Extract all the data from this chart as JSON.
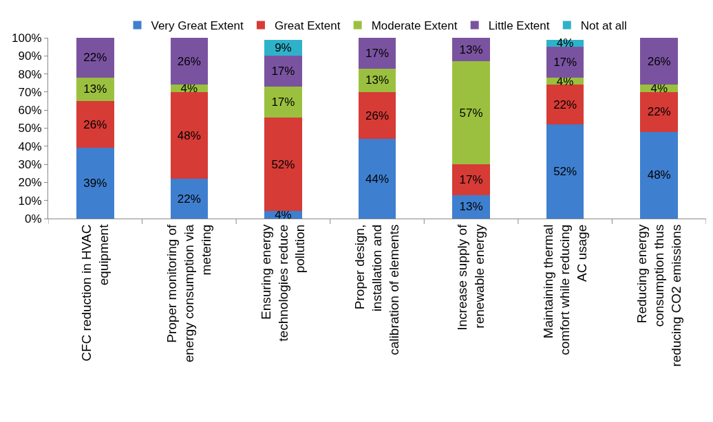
{
  "chart_data": {
    "type": "bar",
    "stacked": true,
    "legend": "top",
    "categories": [
      "CFC reduction in HVAC equipment",
      "Proper monitoring of energy consumption via metering",
      "Ensuring energy technologies reduce pollution",
      "Proper design, installation and calibration of elements",
      "Increase supply of renewable energy",
      "Maintaining thermal comfort while reducing AC usage",
      "Reducing energy consumption thus reducing CO2 emissions"
    ],
    "ylim": [
      0,
      100
    ],
    "yticks": [
      {
        "value": 0,
        "label": "0%"
      },
      {
        "value": 10,
        "label": "10%"
      },
      {
        "value": 20,
        "label": "20%"
      },
      {
        "value": 30,
        "label": "30%"
      },
      {
        "value": 40,
        "label": "40%"
      },
      {
        "value": 50,
        "label": "50%"
      },
      {
        "value": 60,
        "label": "60%"
      },
      {
        "value": 70,
        "label": "70%"
      },
      {
        "value": 80,
        "label": "80%"
      },
      {
        "value": 90,
        "label": "90%"
      },
      {
        "value": 100,
        "label": "100%"
      }
    ],
    "series": [
      {
        "name": "Very Great Extent",
        "color": "#3f7fcf",
        "values": [
          39,
          22,
          4,
          44,
          13,
          52,
          48
        ],
        "value_labels": [
          "39%",
          "22%",
          "4%",
          "44%",
          "13%",
          "52%",
          "48%"
        ]
      },
      {
        "name": "Great Extent",
        "color": "#d63b36",
        "values": [
          26,
          48,
          52,
          26,
          17,
          22,
          22
        ],
        "value_labels": [
          "26%",
          "48%",
          "52%",
          "26%",
          "17%",
          "22%",
          "22%"
        ]
      },
      {
        "name": "Moderate Extent",
        "color": "#9bc03f",
        "values": [
          13,
          4,
          17,
          13,
          57,
          4,
          4
        ],
        "value_labels": [
          "13%",
          "4%",
          "17%",
          "13%",
          "57%",
          "4%",
          "4%"
        ]
      },
      {
        "name": "Little Extent",
        "color": "#7a53a0",
        "values": [
          22,
          26,
          17,
          17,
          13,
          17,
          26
        ],
        "value_labels": [
          "22%",
          "26%",
          "17%",
          "17%",
          "13%",
          "17%",
          "26%"
        ]
      },
      {
        "name": "Not at all",
        "color": "#2fb2c9",
        "values": [
          null,
          null,
          9,
          null,
          null,
          4,
          null
        ],
        "value_labels": [
          null,
          null,
          "9%",
          null,
          null,
          "4%",
          null
        ]
      }
    ]
  }
}
